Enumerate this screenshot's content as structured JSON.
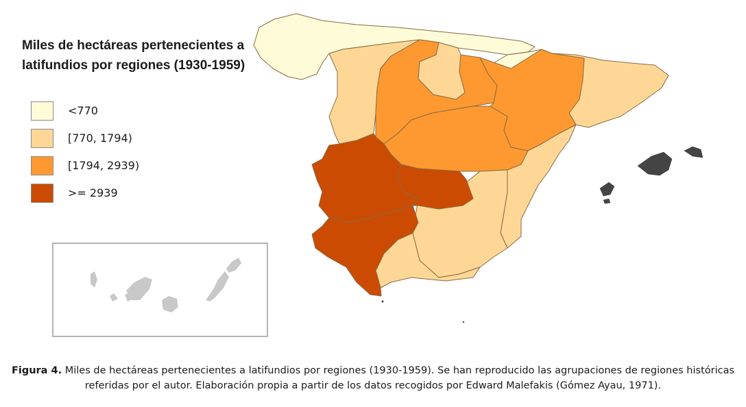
{
  "map": {
    "title": "Miles de hectáreas pertenecientes a latifundios por regiones (1930-1959)",
    "legend": [
      {
        "label": "<770",
        "color": "#fefbd8"
      },
      {
        "label": "[770, 1794)",
        "color": "#fed797"
      },
      {
        "label": "[1794, 2939)",
        "color": "#fd9930"
      },
      {
        "label": ">= 2939",
        "color": "#cb4b02"
      }
    ],
    "other_colors": {
      "balearic_islands": "#444444",
      "canary_islands": "#c8c8c8",
      "borders": "#8a6a40"
    }
  },
  "caption": {
    "label": "Figura 4.",
    "text": " Miles de hectáreas pertenecientes a latifundios por regiones (1930-1959). Se han reproducido las agrupaciones de regiones históricas referidas por el autor. Elaboración propia a partir de los datos recogidos por Edward Malefakis (Gómez Ayau, 1971)."
  }
}
